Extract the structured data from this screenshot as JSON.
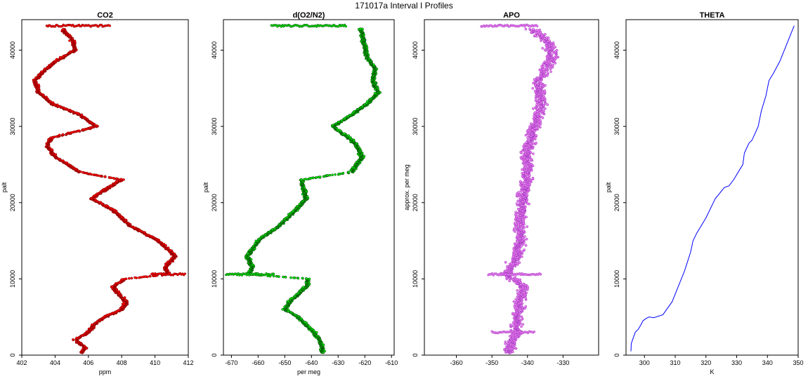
{
  "figure": {
    "title": "171017a   Interval I Profiles"
  },
  "chart_data": [
    {
      "type": "scatter",
      "title": "CO2",
      "xlabel": "ppm",
      "ylabel": "palt",
      "xlim": [
        402,
        412
      ],
      "ylim": [
        0,
        44000
      ],
      "xticks": [
        402,
        404,
        406,
        408,
        410,
        412
      ],
      "yticks": [
        0,
        10000,
        20000,
        30000,
        40000
      ],
      "color": "#ff0000",
      "profile": [
        [
          0,
          405.5
        ],
        [
          1000,
          405.8
        ],
        [
          2000,
          405.2
        ],
        [
          3000,
          406.0
        ],
        [
          4000,
          406.3
        ],
        [
          5000,
          407.0
        ],
        [
          6000,
          408.0
        ],
        [
          7000,
          408.3
        ],
        [
          8000,
          407.8
        ],
        [
          9000,
          407.5
        ],
        [
          10000,
          408.2
        ],
        [
          10600,
          410.8
        ],
        [
          11500,
          410.6
        ],
        [
          13000,
          411.2
        ],
        [
          15000,
          410.2
        ],
        [
          17000,
          408.5
        ],
        [
          19000,
          407.5
        ],
        [
          20500,
          406.2
        ],
        [
          22000,
          407.2
        ],
        [
          23000,
          408.0
        ],
        [
          24000,
          405.5
        ],
        [
          26000,
          404.0
        ],
        [
          27500,
          403.5
        ],
        [
          28500,
          403.8
        ],
        [
          30000,
          406.5
        ],
        [
          31500,
          405.5
        ],
        [
          33000,
          403.8
        ],
        [
          34500,
          403.0
        ],
        [
          36000,
          402.8
        ],
        [
          37000,
          403.2
        ],
        [
          38500,
          404.0
        ],
        [
          40000,
          405.2
        ],
        [
          41500,
          405.0
        ],
        [
          42500,
          404.5
        ],
        [
          43200,
          404.6
        ]
      ],
      "horizontal_bands": [
        {
          "palt": 43200,
          "from": 403.5,
          "to": 407.3
        },
        {
          "palt": 10600,
          "from": 409.8,
          "to": 411.8
        }
      ]
    },
    {
      "type": "scatter",
      "title": "d(O2/N2)",
      "xlabel": "per meg",
      "ylabel": "palt",
      "xlim": [
        -673,
        -609
      ],
      "ylim": [
        0,
        44000
      ],
      "xticks": [
        -670,
        -660,
        -650,
        -640,
        -630,
        -620,
        -610
      ],
      "yticks": [
        0,
        10000,
        20000,
        30000,
        40000
      ],
      "color": "#00ee00",
      "profile": [
        [
          1000,
          -636
        ],
        [
          2000,
          -637
        ],
        [
          3000,
          -639
        ],
        [
          4000,
          -642
        ],
        [
          5000,
          -645
        ],
        [
          6000,
          -650
        ],
        [
          7000,
          -648
        ],
        [
          8000,
          -645
        ],
        [
          9000,
          -642
        ],
        [
          10000,
          -641
        ],
        [
          10600,
          -664
        ],
        [
          11500,
          -662
        ],
        [
          13000,
          -664
        ],
        [
          15000,
          -660
        ],
        [
          17000,
          -652
        ],
        [
          19000,
          -646
        ],
        [
          20500,
          -642
        ],
        [
          22000,
          -643
        ],
        [
          23000,
          -644
        ],
        [
          24000,
          -625
        ],
        [
          26000,
          -621
        ],
        [
          27500,
          -623
        ],
        [
          28500,
          -626
        ],
        [
          30000,
          -632
        ],
        [
          31500,
          -625
        ],
        [
          33000,
          -619
        ],
        [
          34500,
          -615
        ],
        [
          36000,
          -617
        ],
        [
          37500,
          -616
        ],
        [
          39000,
          -619
        ],
        [
          40500,
          -620
        ],
        [
          42000,
          -621
        ],
        [
          43200,
          -622
        ]
      ],
      "horizontal_bands": [
        {
          "palt": 43200,
          "from": -655,
          "to": -627
        },
        {
          "palt": 10600,
          "from": -672,
          "to": -654
        }
      ]
    },
    {
      "type": "scatter",
      "title": "APO",
      "xlabel": "",
      "ylabel": "approx. per meg",
      "xlim": [
        -369,
        -320
      ],
      "ylim": [
        0,
        44000
      ],
      "xticks": [
        -360,
        -350,
        -340,
        -330
      ],
      "yticks": [
        0,
        10000,
        20000,
        30000,
        40000
      ],
      "color": "#ee82ee",
      "profile": [
        [
          1000,
          -345
        ],
        [
          3000,
          -343
        ],
        [
          5000,
          -343
        ],
        [
          7000,
          -342
        ],
        [
          9000,
          -341
        ],
        [
          10600,
          -346
        ],
        [
          13000,
          -343
        ],
        [
          15000,
          -342
        ],
        [
          18000,
          -342
        ],
        [
          21000,
          -341
        ],
        [
          24000,
          -340
        ],
        [
          27000,
          -340
        ],
        [
          30000,
          -338
        ],
        [
          33000,
          -336
        ],
        [
          36000,
          -337
        ],
        [
          39000,
          -333
        ],
        [
          41000,
          -334
        ],
        [
          43200,
          -340
        ]
      ],
      "horizontal_bands": [
        {
          "palt": 43200,
          "from": -353,
          "to": -337
        },
        {
          "palt": 10600,
          "from": -351,
          "to": -336
        },
        {
          "palt": 3000,
          "from": -350,
          "to": -338
        }
      ]
    },
    {
      "type": "line",
      "title": "THETA",
      "xlabel": "K",
      "ylabel": "palt",
      "xlim": [
        294,
        350
      ],
      "ylim": [
        0,
        44000
      ],
      "xticks": [
        300,
        310,
        320,
        330,
        340,
        350
      ],
      "yticks": [
        0,
        10000,
        20000,
        30000,
        40000
      ],
      "color": "#0000ff",
      "x": [
        295.6,
        295.7,
        296.3,
        297.0,
        298.0,
        299.0,
        299.5,
        300.5,
        301.5,
        303.0,
        306.0,
        309.0,
        311.0,
        313.0,
        315.0,
        315.8,
        317.0,
        320.0,
        323.0,
        326.0,
        327.5,
        329.0,
        332.0,
        332.5,
        334.0,
        335.0,
        337.0,
        338.0,
        339.5,
        340.5,
        342.0,
        344.0,
        345.5,
        346.5,
        347.5,
        348.5,
        348.7
      ],
      "y": [
        500,
        1500,
        2200,
        3000,
        3400,
        4100,
        4500,
        4800,
        5000,
        4900,
        5300,
        7000,
        9000,
        11000,
        13500,
        15000,
        16000,
        18000,
        20500,
        22000,
        22200,
        23000,
        25000,
        26500,
        27800,
        28200,
        30000,
        32000,
        34000,
        36000,
        37000,
        38500,
        40000,
        41000,
        42000,
        43000,
        43200
      ]
    }
  ]
}
